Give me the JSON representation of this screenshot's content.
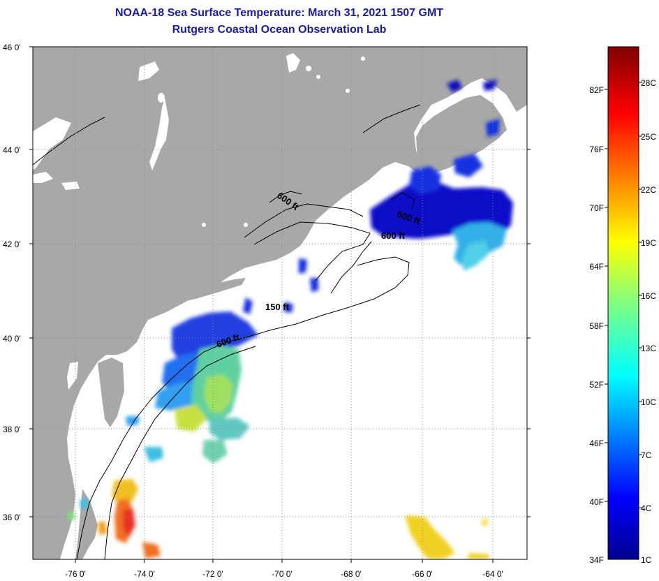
{
  "header": {
    "title": "NOAA-18 Sea Surface Temperature:  March 31, 2021 1507 GMT",
    "subtitle": "Rutgers Coastal Ocean Observation Lab"
  },
  "map": {
    "lat_ticks": [
      "46 0'",
      "44 0'",
      "42 0'",
      "40 0'",
      "38 0'",
      "36 0'"
    ],
    "lon_ticks": [
      "-76 0'",
      "-74 0'",
      "-72 0'",
      "-70 0'",
      "-68 0'",
      "-66 0'",
      "-64 0'"
    ],
    "isobath_labels": [
      "600 ft",
      "600 ft",
      "600 ft",
      "150 ft",
      "600 ft"
    ]
  },
  "colorbar": {
    "fahrenheit": [
      "82F",
      "76F",
      "70F",
      "64F",
      "58F",
      "52F",
      "46F",
      "40F",
      "34F"
    ],
    "celsius": [
      "28C",
      "25C",
      "22C",
      "19C",
      "16C",
      "13C",
      "10C",
      "7C",
      "4C",
      "1C"
    ]
  },
  "colors": {
    "land": "#a8a8a8",
    "water": "#ffffff",
    "title": "#1a1aa6"
  }
}
